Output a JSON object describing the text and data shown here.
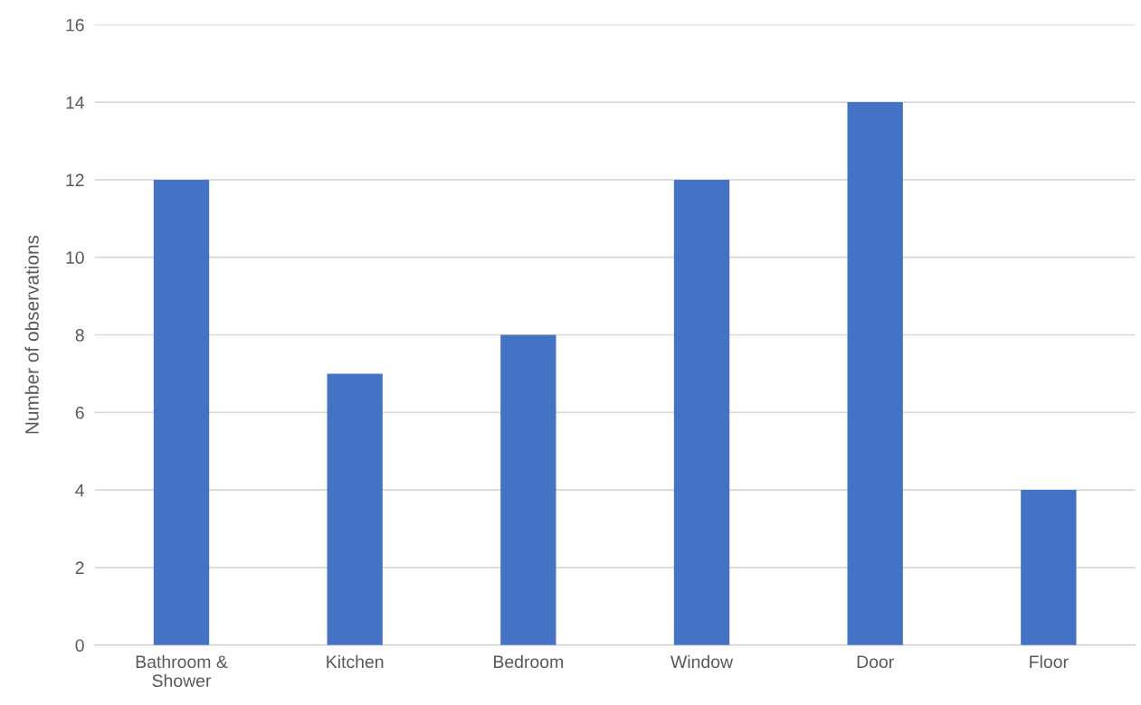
{
  "chart_data": {
    "type": "bar",
    "ylabel": "Number of observations",
    "categories": [
      "Bathroom &\nShower",
      "Kitchen",
      "Bedroom",
      "Window",
      "Door",
      "Floor"
    ],
    "values": [
      12,
      7,
      8,
      12,
      14,
      4
    ],
    "color": "#4472c4",
    "ylim": [
      0,
      16
    ],
    "yticks": [
      0,
      2,
      4,
      6,
      8,
      10,
      12,
      14,
      16
    ],
    "grid": "y",
    "legend": false
  }
}
